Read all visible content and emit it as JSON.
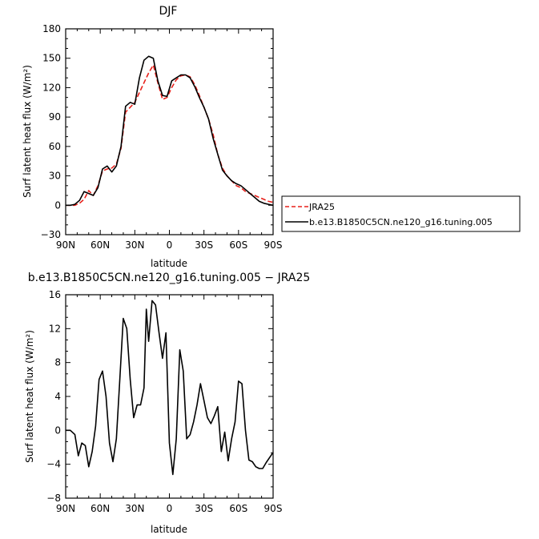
{
  "chart_data": [
    {
      "type": "line",
      "title": "DJF",
      "xlabel": "latitude",
      "ylabel": "Surf latent heat flux (W/m²)",
      "xlim": [
        90,
        -90
      ],
      "ylim": [
        -30,
        180
      ],
      "xticks": [
        90,
        60,
        30,
        0,
        -30,
        -60,
        -90
      ],
      "xtick_labels": [
        "90N",
        "60N",
        "30N",
        "0",
        "30S",
        "60S",
        "90S"
      ],
      "yticks": [
        -30,
        0,
        30,
        60,
        90,
        120,
        150,
        180
      ],
      "ytick_labels": [
        "−30",
        "0",
        "30",
        "60",
        "90",
        "120",
        "150",
        "180"
      ],
      "legend_placement": "right",
      "series": [
        {
          "name": "JRA25",
          "color": "#e8201a",
          "dash": "dashed",
          "x": [
            90,
            86,
            82,
            78,
            74,
            70,
            66,
            62,
            58,
            54,
            50,
            46,
            42,
            38,
            34,
            30,
            26,
            22,
            18,
            14,
            10,
            6,
            2,
            -2,
            -6,
            -10,
            -14,
            -18,
            -22,
            -26,
            -30,
            -34,
            -38,
            -42,
            -46,
            -50,
            -54,
            -58,
            -62,
            -66,
            -70,
            -74,
            -78,
            -82,
            -86,
            -90
          ],
          "y": [
            0,
            0,
            0,
            2,
            6,
            15,
            10,
            20,
            35,
            37,
            38,
            42,
            58,
            95,
            100,
            105,
            115,
            125,
            135,
            143,
            125,
            108,
            110,
            120,
            128,
            132,
            133,
            131,
            123,
            112,
            100,
            88,
            72,
            52,
            38,
            30,
            25,
            20,
            18,
            14,
            12,
            10,
            8,
            6,
            4,
            3
          ]
        },
        {
          "name": "b.e13.B1850C5CN.ne120_g16.tuning.005",
          "color": "#000000",
          "dash": "solid",
          "x": [
            90,
            86,
            82,
            78,
            74,
            70,
            66,
            62,
            58,
            54,
            50,
            46,
            42,
            38,
            34,
            30,
            26,
            22,
            18,
            14,
            10,
            6,
            2,
            -2,
            -6,
            -10,
            -14,
            -18,
            -22,
            -26,
            -30,
            -34,
            -38,
            -42,
            -46,
            -50,
            -54,
            -58,
            -62,
            -66,
            -70,
            -74,
            -78,
            -82,
            -86,
            -90
          ],
          "y": [
            0,
            0,
            1,
            5,
            14,
            12,
            10,
            18,
            37,
            40,
            34,
            40,
            60,
            101,
            105,
            103,
            130,
            148,
            152,
            150,
            127,
            112,
            111,
            127,
            130,
            133,
            133,
            130,
            121,
            110,
            100,
            88,
            68,
            52,
            36,
            30,
            25,
            22,
            20,
            16,
            12,
            8,
            4,
            2,
            1,
            0
          ]
        }
      ]
    },
    {
      "type": "line",
      "title": "b.e13.B1850C5CN.ne120_g16.tuning.005 − JRA25",
      "xlabel": "latitude",
      "ylabel": "Surf latent heat flux (W/m²)",
      "xlim": [
        90,
        -90
      ],
      "ylim": [
        -8,
        16
      ],
      "xticks": [
        90,
        60,
        30,
        0,
        -30,
        -60,
        -90
      ],
      "xtick_labels": [
        "90N",
        "60N",
        "30N",
        "0",
        "30S",
        "60S",
        "90S"
      ],
      "yticks": [
        -8,
        -4,
        0,
        4,
        8,
        12,
        16
      ],
      "ytick_labels": [
        "−8",
        "−4",
        "0",
        "4",
        "8",
        "12",
        "16"
      ],
      "series": [
        {
          "color": "#000000",
          "dash": "solid",
          "x": [
            90,
            86,
            82,
            79,
            76,
            73,
            70,
            67,
            64,
            61,
            58,
            55,
            52,
            49,
            46,
            43,
            40,
            37,
            34,
            31,
            28,
            25,
            22,
            20,
            18,
            15,
            12,
            9,
            6,
            3,
            0,
            -3,
            -6,
            -9,
            -12,
            -15,
            -18,
            -21,
            -24,
            -27,
            -30,
            -33,
            -36,
            -39,
            -42,
            -45,
            -48,
            -51,
            -54,
            -57,
            -60,
            -63,
            -66,
            -69,
            -72,
            -75,
            -78,
            -81,
            -84,
            -87,
            -90
          ],
          "y": [
            0,
            0,
            -0.5,
            -3,
            -1.5,
            -1.8,
            -4.3,
            -2.5,
            0.5,
            6,
            7,
            4,
            -1.5,
            -3.7,
            -1,
            6,
            13.2,
            12,
            6,
            1.5,
            3,
            3,
            5,
            14.3,
            10.5,
            15.3,
            14.8,
            11.5,
            8.5,
            11.5,
            -1.5,
            -5.2,
            -1,
            9.5,
            7,
            -1,
            -0.5,
            1,
            3,
            5.5,
            3.5,
            1.5,
            0.8,
            1.7,
            2.8,
            -2.5,
            -0.2,
            -3.6,
            -1,
            1,
            5.8,
            5.5,
            0,
            -3.5,
            -3.7,
            -4.3,
            -4.5,
            -4.5,
            -3.8,
            -3.2,
            -2.6
          ]
        }
      ]
    }
  ]
}
